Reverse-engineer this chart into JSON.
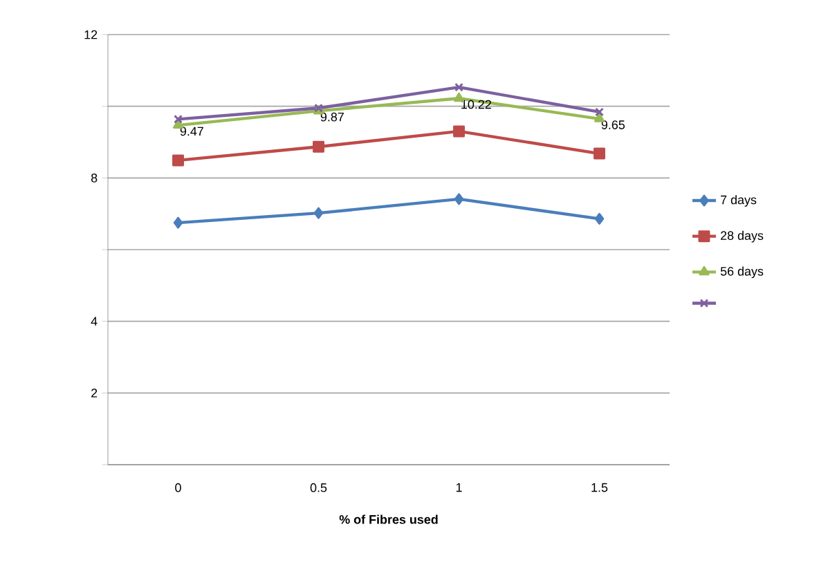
{
  "chart_data": {
    "type": "line",
    "xlabel": "% of Fibres used",
    "categories": [
      "0",
      "0.5",
      "1",
      "1.5"
    ],
    "ylim": [
      0,
      12
    ],
    "yticks": [
      {
        "value": 0,
        "label": null
      },
      {
        "value": 2,
        "label": "2"
      },
      4,
      {
        "value": 6,
        "label": null
      },
      {
        "value": 8,
        "label": "8"
      },
      {
        "value": 10,
        "label": null
      },
      {
        "value": 12,
        "label": "12"
      }
    ],
    "grid": "y",
    "legend": "right",
    "line_style": "solid",
    "series": [
      {
        "name": "7 days",
        "color": "#4a7ebb",
        "marker": "diamond",
        "values": [
          6.75,
          7.02,
          7.41,
          6.86
        ]
      },
      {
        "name": "28 days",
        "color": "#be4b48",
        "marker": "square",
        "values": [
          8.49,
          8.87,
          9.3,
          8.68
        ]
      },
      {
        "name": "56 days",
        "color": "#98b954",
        "marker": "triangle",
        "values": [
          9.47,
          9.87,
          10.22,
          9.65
        ],
        "value_labels": [
          "9.47",
          "9.87",
          "10.22",
          "9.65"
        ]
      },
      {
        "color": "#7d60a0",
        "marker": "cross",
        "values": [
          9.64,
          9.95,
          10.53,
          9.84
        ]
      }
    ]
  }
}
